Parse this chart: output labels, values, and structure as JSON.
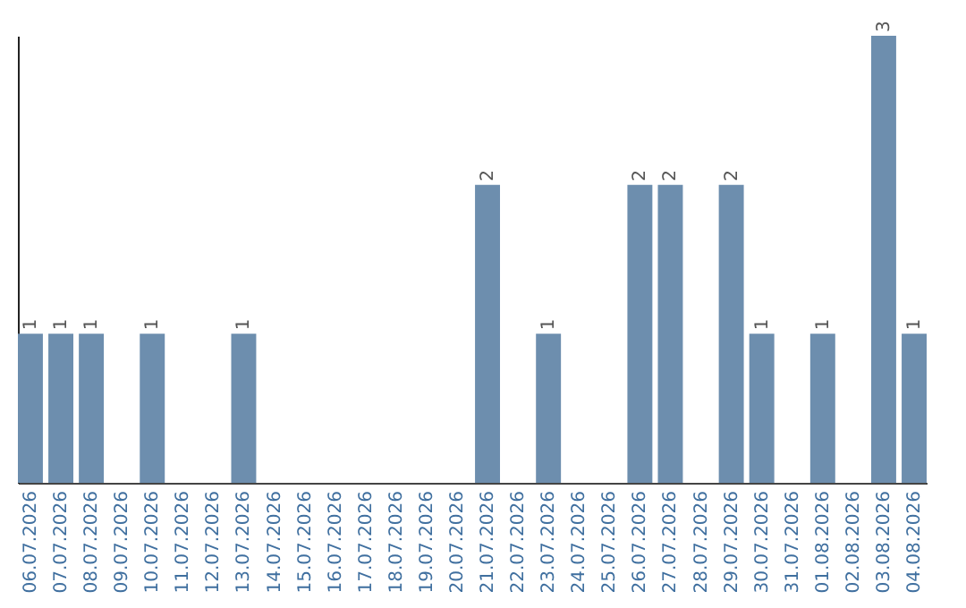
{
  "chart_data": {
    "type": "bar",
    "categories": [
      "06.07.2026",
      "07.07.2026",
      "08.07.2026",
      "09.07.2026",
      "10.07.2026",
      "11.07.2026",
      "12.07.2026",
      "13.07.2026",
      "14.07.2026",
      "15.07.2026",
      "16.07.2026",
      "17.07.2026",
      "18.07.2026",
      "19.07.2026",
      "20.07.2026",
      "21.07.2026",
      "22.07.2026",
      "23.07.2026",
      "24.07.2026",
      "25.07.2026",
      "26.07.2026",
      "27.07.2026",
      "28.07.2026",
      "29.07.2026",
      "30.07.2026",
      "31.07.2026",
      "01.08.2026",
      "02.08.2026",
      "03.08.2026",
      "04.08.2026"
    ],
    "values": [
      1,
      1,
      1,
      0,
      1,
      0,
      0,
      1,
      0,
      0,
      0,
      0,
      0,
      0,
      0,
      2,
      0,
      1,
      0,
      0,
      2,
      2,
      0,
      2,
      1,
      0,
      1,
      0,
      3,
      1
    ],
    "value_labels": [
      "1",
      "1",
      "1",
      null,
      "1",
      null,
      null,
      "1",
      null,
      null,
      null,
      null,
      null,
      null,
      null,
      "2",
      null,
      "1",
      null,
      null,
      "2",
      "2",
      null,
      "2",
      "1",
      null,
      "1",
      null,
      "3",
      "1"
    ],
    "color": "#6d8eae",
    "ylim": [
      0,
      3
    ],
    "tick_labels": "x",
    "grid": false
  }
}
